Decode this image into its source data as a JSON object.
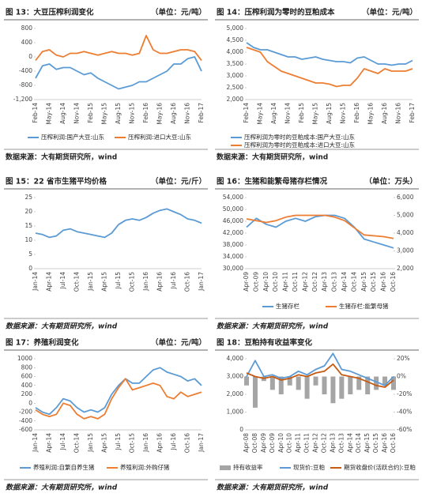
{
  "chart_data": [
    {
      "type": "line",
      "title": "图 13：大豆压榨利润变化",
      "unit": "（单位：元/吨）",
      "source": "数据来源：大有期货研究所，wind",
      "categories": [
        "Feb-14",
        null,
        "May-14",
        null,
        "Aug-14",
        null,
        "Nov-14",
        null,
        "Feb-15",
        null,
        "May-15",
        null,
        "Aug-15",
        null,
        "Nov-15",
        null,
        "Feb-16",
        null,
        "May-16",
        null,
        "Aug-16",
        null,
        "Nov-16",
        null,
        "Feb-17"
      ],
      "series": [
        {
          "name": "压榨利润:国产大豆:山东",
          "color": "#5b9bd5",
          "values": [
            -600,
            -250,
            -200,
            -350,
            -300,
            -300,
            -400,
            -500,
            -450,
            -600,
            -700,
            -800,
            -900,
            -850,
            -800,
            -700,
            -700,
            -600,
            -500,
            -400,
            -200,
            -200,
            -50,
            0,
            -400
          ]
        },
        {
          "name": "压榨利润:进口大豆:山东",
          "color": "#ed7d31",
          "values": [
            -100,
            150,
            200,
            50,
            0,
            100,
            100,
            150,
            100,
            50,
            100,
            150,
            100,
            100,
            50,
            100,
            600,
            200,
            100,
            100,
            150,
            200,
            200,
            150,
            -100
          ]
        }
      ],
      "ylim": [
        -1200,
        800
      ],
      "yticks": [
        {
          "value": -1200,
          "label": "-1,200"
        },
        -800,
        -400,
        0,
        400,
        800
      ]
    },
    {
      "type": "line",
      "title": "图 14：压榨利润为零时的豆粕成本",
      "unit": "（单位：元/吨）",
      "source": "数据来源：大有期货研究所，wind",
      "categories": [
        "Feb-14",
        null,
        "May-14",
        null,
        "Aug-14",
        null,
        "Nov-14",
        null,
        "Feb-15",
        null,
        "May-15",
        null,
        "Aug-15",
        null,
        "Nov-15",
        null,
        "Feb-16",
        null,
        "May-16",
        null,
        "Aug-16",
        null,
        "Nov-16",
        null,
        "Feb-17"
      ],
      "series": [
        {
          "name": "压榨利润为零时的豆粕成本:国产大豆:山东",
          "color": "#5b9bd5",
          "values": [
            4400,
            4200,
            4100,
            4100,
            4000,
            3900,
            3800,
            3800,
            3700,
            3750,
            3800,
            3700,
            3650,
            3600,
            3600,
            3550,
            3750,
            3800,
            3650,
            3500,
            3500,
            3450,
            3500,
            3500,
            3650
          ]
        },
        {
          "name": "压榨利润为零时的豆粕成本:进口大豆:山东",
          "color": "#ed7d31",
          "values": [
            4200,
            4100,
            4000,
            3600,
            3400,
            3200,
            3100,
            3000,
            2900,
            2800,
            2700,
            2700,
            2650,
            2550,
            2600,
            2600,
            2900,
            3300,
            3200,
            3100,
            3300,
            3200,
            3200,
            3200,
            3300
          ]
        }
      ],
      "ylim": [
        2000,
        5000
      ],
      "yticks": [
        {
          "value": 2000,
          "label": "2,000"
        },
        {
          "value": 2500,
          "label": "2,500"
        },
        {
          "value": 3000,
          "label": "3,000"
        },
        {
          "value": 3500,
          "label": "3,500"
        },
        {
          "value": 4000,
          "label": "4,000"
        },
        {
          "value": 4500,
          "label": "4,500"
        },
        {
          "value": 5000,
          "label": "5,000"
        }
      ]
    },
    {
      "type": "line",
      "title": "图 15：22 省市生猪平均价格",
      "unit": "（单位：元/斤）",
      "source": "数据来源：大有期货研究所，wind",
      "categories": [
        "Jan-14",
        null,
        "Apr-14",
        null,
        "Jul-14",
        null,
        "Oct-14",
        null,
        "Jan-15",
        null,
        "Apr-15",
        null,
        "Jul-15",
        null,
        "Oct-15",
        null,
        "Jan-16",
        null,
        "Apr-16",
        null,
        "Jul-16",
        null,
        "Oct-16",
        null,
        "Jan-17"
      ],
      "values": [
        12.5,
        12,
        11,
        11.5,
        13.5,
        14,
        13,
        12.5,
        12,
        11.5,
        11,
        12.5,
        15.5,
        17,
        17.5,
        17,
        18,
        19.5,
        20.5,
        21,
        20,
        19,
        17.5,
        17,
        16
      ],
      "color": "#5b9bd5",
      "ylim": [
        0,
        25
      ],
      "yticks": [
        0,
        5,
        10,
        15,
        20,
        25
      ]
    },
    {
      "type": "line",
      "title": "图 16：生猪和能繁母猪存栏情况",
      "unit": "（单位：万头）",
      "source": "数据来源：大有期货研究所，wind",
      "categories": [
        "Apr-09",
        "Oct-09",
        "Apr-10",
        "Oct-10",
        "Apr-11",
        "Oct-11",
        "Apr-12",
        "Oct-12",
        "Apr-13",
        "Oct-13",
        "Apr-14",
        "Oct-14",
        "Apr-15",
        "Oct-15",
        "Apr-16",
        "Oct-16"
      ],
      "series": [
        {
          "name": "生猪存栏",
          "color": "#5b9bd5",
          "values": [
            44000,
            47000,
            45000,
            44000,
            46000,
            47000,
            46000,
            47500,
            48000,
            48000,
            47000,
            44000,
            40000,
            39000,
            38000,
            37000
          ]
        },
        {
          "name": "生猪存栏:能繁母猪",
          "color": "#ed7d31",
          "axis": "y2",
          "values": [
            4800,
            4700,
            4600,
            4700,
            4900,
            5000,
            5000,
            5000,
            5000,
            4900,
            4700,
            4300,
            3900,
            3850,
            3800,
            3700
          ]
        }
      ],
      "ylim": [
        30000,
        54000
      ],
      "yticks": [
        {
          "value": 30000,
          "label": "30,000"
        },
        {
          "value": 34000,
          "label": "34,000"
        },
        {
          "value": 38000,
          "label": "38,000"
        },
        {
          "value": 42000,
          "label": "42,000"
        },
        {
          "value": 46000,
          "label": "46,000"
        },
        {
          "value": 50000,
          "label": "50,000"
        },
        {
          "value": 54000,
          "label": "54,000"
        }
      ],
      "y2lim": [
        2000,
        6000
      ],
      "y2ticks": [
        {
          "value": 2000,
          "label": "2,000"
        },
        {
          "value": 3000,
          "label": "3,000"
        },
        {
          "value": 4000,
          "label": "4,000"
        },
        {
          "value": 5000,
          "label": "5,000"
        },
        {
          "value": 6000,
          "label": "6,000"
        }
      ]
    },
    {
      "type": "line",
      "title": "图 17：养殖利润变化",
      "unit": "（单位：元/吨）",
      "source": "数据来源：大有期货研究所，wind",
      "categories": [
        "Jan-14",
        null,
        "Apr-14",
        null,
        "Jul-14",
        null,
        "Oct-14",
        null,
        "Jan-15",
        null,
        "Apr-15",
        null,
        "Jul-15",
        null,
        "Oct-15",
        null,
        "Jan-16",
        null,
        "Apr-16",
        null,
        "Jul-16",
        null,
        "Oct-16",
        null,
        "Jan-17"
      ],
      "series": [
        {
          "name": "养殖利润:自繁自养生猪",
          "color": "#5b9bd5",
          "values": [
            -100,
            -200,
            -250,
            -100,
            100,
            50,
            -100,
            -200,
            -150,
            -200,
            -100,
            200,
            400,
            550,
            450,
            450,
            600,
            750,
            800,
            700,
            650,
            600,
            500,
            550,
            400
          ]
        },
        {
          "name": "养殖利润:外购仔猪",
          "color": "#ed7d31",
          "values": [
            -150,
            -250,
            -300,
            -250,
            0,
            -50,
            -250,
            -350,
            -300,
            -350,
            -250,
            100,
            350,
            550,
            300,
            350,
            400,
            450,
            400,
            150,
            100,
            250,
            150,
            200,
            250
          ]
        }
      ],
      "ylim": [
        -600,
        1000
      ],
      "yticks": [
        -600,
        -400,
        -200,
        0,
        200,
        400,
        600,
        800,
        1000
      ]
    },
    {
      "type": "line",
      "title": "图 18：豆粕持有收益率变化",
      "source": "数据来源：大有期货研究所，wind",
      "categories": [
        "Apr-08",
        "Oct-08",
        "Apr-09",
        "Oct-09",
        "Apr-10",
        "Oct-10",
        "Apr-11",
        "Oct-11",
        "Apr-12",
        "Oct-12",
        "Apr-13",
        "Oct-13",
        "Apr-14",
        "Oct-14",
        "Apr-15",
        "Oct-15",
        "Apr-16",
        "Oct-16"
      ],
      "series": [
        {
          "name": "持有收益率",
          "color": "#a5a5a5",
          "type": "bar",
          "axis": "y2",
          "values": [
            -10,
            -35,
            -5,
            -15,
            -20,
            -10,
            -15,
            -25,
            -10,
            -20,
            -30,
            -25,
            -20,
            -15,
            -20,
            -15,
            -10,
            -15
          ]
        },
        {
          "name": "现货价:豆粕",
          "color": "#5b9bd5",
          "values": [
            3000,
            3900,
            3000,
            3100,
            2900,
            3000,
            3300,
            3100,
            3400,
            3600,
            4300,
            3400,
            3300,
            3100,
            2900,
            2700,
            2500,
            3000
          ]
        },
        {
          "name": "期货收盘价(活跃合约):豆粕",
          "color": "#c55a11",
          "values": [
            3200,
            3000,
            2900,
            3000,
            2800,
            2900,
            3100,
            3000,
            3200,
            3300,
            3700,
            3100,
            3000,
            2900,
            2700,
            2500,
            2400,
            2800
          ]
        }
      ],
      "ylim": [
        0,
        4000
      ],
      "yticks": [
        0,
        {
          "value": 1000,
          "label": "1,000"
        },
        {
          "value": 2000,
          "label": "2,000"
        },
        {
          "value": 3000,
          "label": "3,000"
        },
        {
          "value": 4000,
          "label": "4,000"
        }
      ],
      "y2lim": [
        -60,
        20
      ],
      "y2ticks": [
        {
          "value": -60,
          "label": "-60%"
        },
        {
          "value": -40,
          "label": "-40%"
        },
        {
          "value": -20,
          "label": "-20%"
        },
        {
          "value": 0,
          "label": "0%"
        },
        {
          "value": 20,
          "label": "20%"
        }
      ]
    }
  ]
}
